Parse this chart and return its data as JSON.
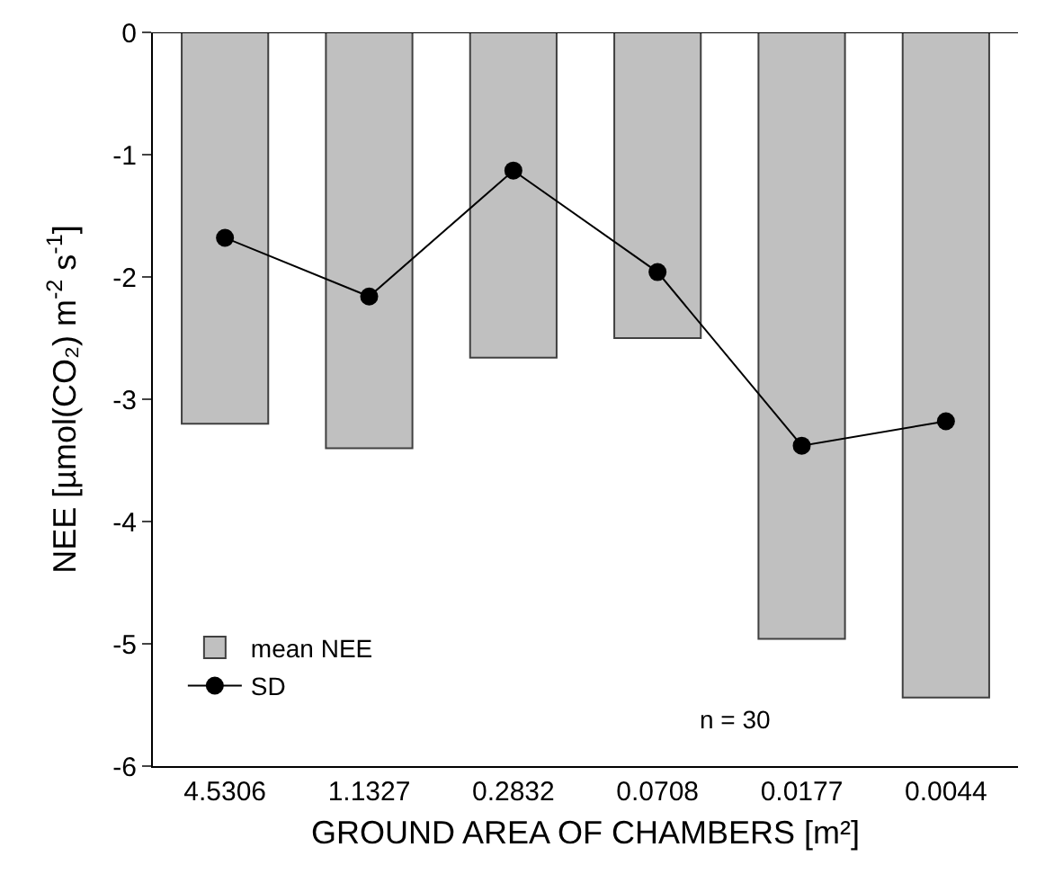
{
  "chart_data": {
    "type": "bar",
    "xlabel": "GROUND AREA OF CHAMBERS [m²]",
    "ylabel": "NEE [µmol(CO₂) m$^{-2}$ s$^{-1}$]",
    "categories": [
      "4.5306",
      "1.1327",
      "0.2832",
      "0.0708",
      "0.0177",
      "0.0044"
    ],
    "series": [
      {
        "name": "mean NEE",
        "color": "#c0c0c0",
        "values": [
          -3.2,
          -3.4,
          -2.66,
          -2.5,
          -4.96,
          -5.44
        ]
      },
      {
        "name": "SD",
        "type": "line",
        "color": "#000000",
        "marker": "circle",
        "values": [
          -1.68,
          -2.16,
          -1.13,
          -1.96,
          -3.38,
          -3.18
        ]
      }
    ],
    "ylim": [
      -6,
      0
    ],
    "yticks": [
      -6,
      -5,
      -4,
      -3,
      -2,
      -1,
      0
    ],
    "legend": "bottom left",
    "annotations": [
      "n = 30"
    ]
  }
}
